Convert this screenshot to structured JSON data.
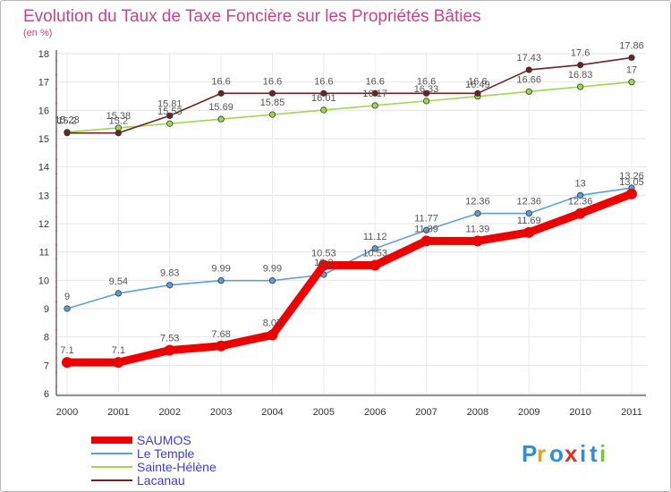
{
  "chart_data": {
    "type": "line",
    "title": "Evolution du Taux de Taxe Foncière sur les Propriétés Bâties",
    "ylabel": "(en %)",
    "xlabel": "",
    "ylim": [
      6,
      18
    ],
    "yticks": [
      "6",
      "7",
      "8",
      "9",
      "10",
      "11",
      "12",
      "13",
      "14",
      "15",
      "16",
      "17",
      "18"
    ],
    "categories": [
      "2000",
      "2001",
      "2002",
      "2003",
      "2004",
      "2005",
      "2006",
      "2007",
      "2008",
      "2009",
      "2010",
      "2011"
    ],
    "series": [
      {
        "name": "SAUMOS",
        "color": "#ee0000",
        "values": [
          7.1,
          7.1,
          7.53,
          7.68,
          8.07,
          10.53,
          10.53,
          11.39,
          11.39,
          11.69,
          12.36,
          13.05
        ],
        "labels": [
          "7.1",
          "7.1",
          "7.53",
          "7.68",
          "8.07",
          "10.53",
          "10.53",
          "11.39",
          "11.39",
          "11.69",
          "12.36",
          "13.05"
        ]
      },
      {
        "name": "Le Temple",
        "color": "#5f9fd8",
        "values": [
          9,
          9.54,
          9.83,
          9.99,
          9.99,
          10.2,
          11.12,
          11.77,
          12.36,
          12.36,
          13,
          13.26
        ],
        "labels": [
          "9",
          "9.54",
          "9.83",
          "9.99",
          "9.99",
          "10.2",
          "11.12",
          "11.77",
          "12.36",
          "12.36",
          "13",
          "13.26"
        ]
      },
      {
        "name": "Sainte-Hélène",
        "color": "#9dd84f",
        "values": [
          15.23,
          15.38,
          15.53,
          15.69,
          15.85,
          16.01,
          16.17,
          16.33,
          16.49,
          16.66,
          16.83,
          17
        ],
        "labels": [
          "15.23",
          "15.38",
          "15.53",
          "15.69",
          "15.85",
          "16.01",
          "16.17",
          "16.33",
          "16.49",
          "16.66",
          "16.83",
          "17"
        ]
      },
      {
        "name": "Lacanau",
        "color": "#6b2424",
        "values": [
          15.2,
          15.2,
          15.81,
          16.6,
          16.6,
          16.6,
          16.6,
          16.6,
          16.6,
          17.43,
          17.6,
          17.86
        ],
        "labels": [
          "15.2",
          "15.2",
          "15.81",
          "16.6",
          "16.6",
          "16.6",
          "16.6",
          "16.6",
          "16.6",
          "17.43",
          "17.6",
          "17.86"
        ]
      }
    ]
  },
  "logo": {
    "letters": [
      "P",
      "r",
      "o",
      "x",
      "i",
      "t",
      "i"
    ],
    "colors": [
      "#2f8fd0",
      "#e8a020",
      "#2f8fd0",
      "#e03020",
      "#2f8fd0",
      "#2f8fd0",
      "#7cc43a"
    ]
  }
}
